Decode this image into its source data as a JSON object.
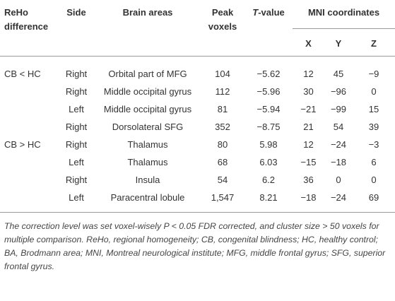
{
  "header": {
    "reho": "ReHo difference",
    "side": "Side",
    "areas": "Brain areas",
    "peak": "Peak voxels",
    "t_symbol": "T",
    "t_suffix": "-value",
    "mni": "MNI coordinates",
    "x": "X",
    "y": "Y",
    "z": "Z"
  },
  "groups": [
    {
      "label": "CB < HC",
      "rows": [
        [
          "Right",
          "Orbital part of MFG",
          "104",
          "−5.62",
          "12",
          "45",
          "−9"
        ],
        [
          "Right",
          "Middle occipital gyrus",
          "112",
          "−5.96",
          "30",
          "−96",
          "0"
        ],
        [
          "Left",
          "Middle occipital gyrus",
          "81",
          "−5.94",
          "−21",
          "−99",
          "15"
        ],
        [
          "Right",
          "Dorsolateral SFG",
          "352",
          "−8.75",
          "21",
          "54",
          "39"
        ]
      ]
    },
    {
      "label": "CB > HC",
      "rows": [
        [
          "Right",
          "Thalamus",
          "80",
          "5.98",
          "12",
          "−24",
          "−3"
        ],
        [
          "Left",
          "Thalamus",
          "68",
          "6.03",
          "−15",
          "−18",
          "6"
        ],
        [
          "Right",
          "Insula",
          "54",
          "6.2",
          "36",
          "0",
          "0"
        ],
        [
          "Left",
          "Paracentral lobule",
          "1,547",
          "8.21",
          "−18",
          "−24",
          "69"
        ]
      ]
    }
  ],
  "footnote": "The correction level was set voxel-wisely P < 0.05 FDR corrected, and cluster size > 50 voxels for multiple comparison. ReHo, regional homogeneity; CB, congenital blindness; HC, healthy control; BA, Brodmann area; MNI, Montreal neurological institute; MFG, middle frontal gyrus; SFG, superior frontal gyrus."
}
